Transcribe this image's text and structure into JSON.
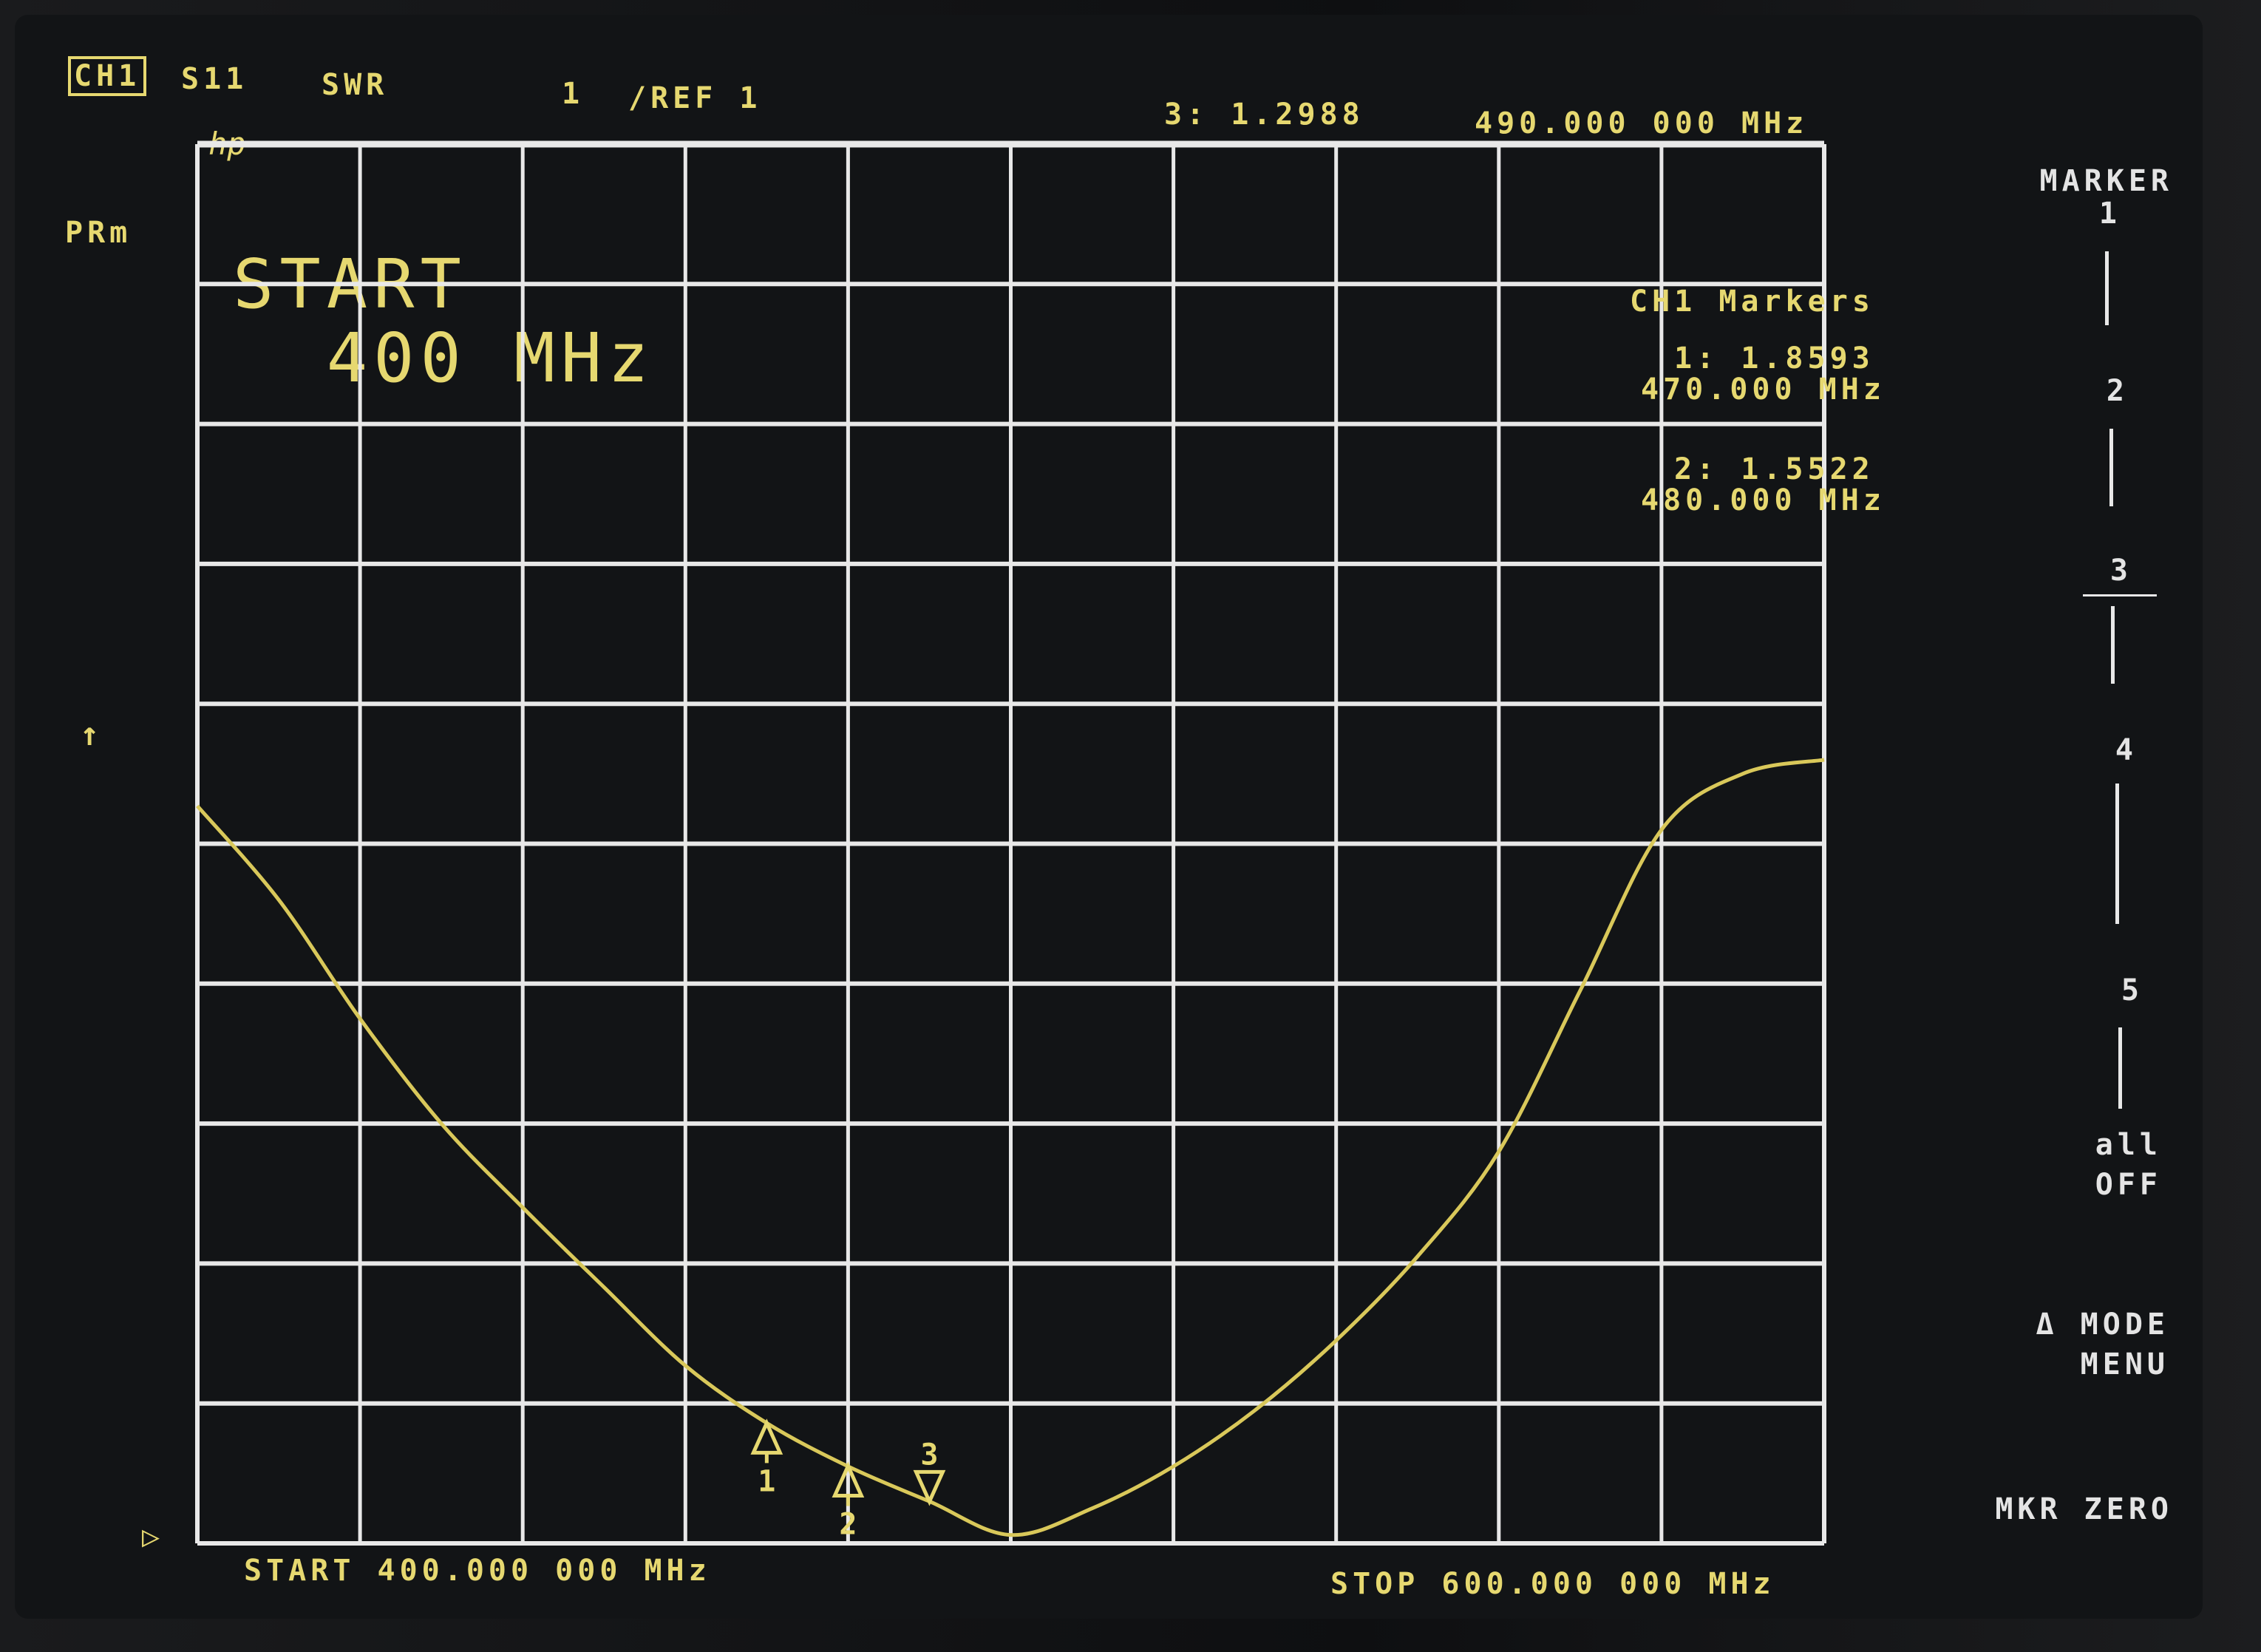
{
  "header": {
    "channel": "CH1",
    "parameter": "S11",
    "format": "SWR",
    "scale": "1",
    "reference": "/REF 1",
    "active_marker_readout": "3: 1.2988",
    "active_marker_freq": "490.000 000 MHz"
  },
  "left_labels": {
    "prm": "PRm",
    "arrow": "↑",
    "logo": "hp",
    "ref_marker": "▷"
  },
  "entry": {
    "line1": "START",
    "line2": "  400 MHz"
  },
  "markers_panel": {
    "title": "CH1 Markers",
    "items": [
      {
        "value": "1: 1.8593",
        "freq": "470.000 MHz"
      },
      {
        "value": "2: 1.5522",
        "freq": "480.000 MHz"
      }
    ]
  },
  "footer": {
    "start": "START 400.000 000 MHz",
    "stop": "STOP 600.000 000 MHz"
  },
  "softkeys": {
    "title": "MARKER",
    "items": [
      "1",
      "2",
      "3",
      "4",
      "5",
      "all\nOFF",
      "Δ MODE\nMENU",
      "MKR ZERO"
    ],
    "selected": "3"
  },
  "colors": {
    "text": "#e6d870",
    "grid": "#e8e8e8",
    "trace": "#d9c85a",
    "background": "#121416"
  },
  "chart_data": {
    "type": "line",
    "title": "",
    "xlabel": "",
    "ylabel": "",
    "xlim": [
      400,
      600
    ],
    "ylim": [
      1,
      11
    ],
    "x_unit": "MHz",
    "grid": true,
    "x_divisions": 10,
    "y_divisions": 10,
    "x": [
      400,
      410,
      420,
      430,
      440,
      450,
      460,
      470,
      480,
      490,
      500,
      510,
      520,
      530,
      540,
      550,
      560,
      570,
      580,
      590,
      600
    ],
    "values": [
      6.27,
      5.6,
      4.75,
      4.0,
      3.4,
      2.83,
      2.27,
      1.86,
      1.55,
      1.3,
      1.06,
      1.25,
      1.55,
      1.95,
      2.45,
      3.05,
      3.8,
      4.95,
      6.1,
      6.5,
      6.6
    ],
    "markers": [
      {
        "label": "1",
        "x": 470,
        "y": 1.8593,
        "direction": "up"
      },
      {
        "label": "2",
        "x": 480,
        "y": 1.5522,
        "direction": "up"
      },
      {
        "label": "3",
        "x": 490,
        "y": 1.2988,
        "direction": "down"
      }
    ]
  }
}
